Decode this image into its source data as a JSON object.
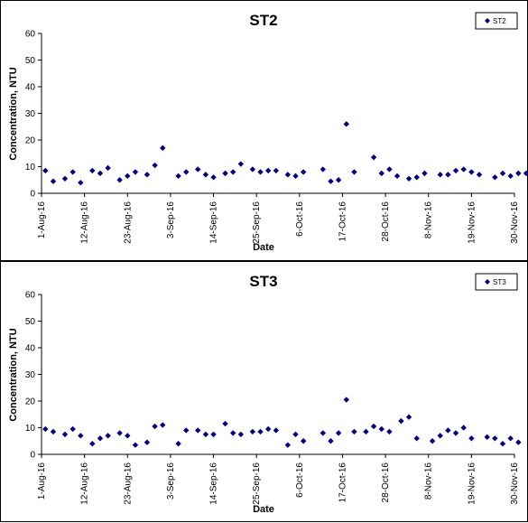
{
  "chart_data": [
    {
      "type": "scatter",
      "title": "ST2",
      "xlabel": "Date",
      "ylabel": "Concentration, NTU",
      "ylim": [
        0,
        60
      ],
      "yticks": [
        0,
        10,
        20,
        30,
        40,
        50,
        60
      ],
      "xlim": [
        "2016-08-01",
        "2016-11-30"
      ],
      "xtick_labels": [
        "1-Aug-16",
        "12-Aug-16",
        "23-Aug-16",
        "3-Sep-16",
        "14-Sep-16",
        "25-Sep-16",
        "6-Oct-16",
        "17-Oct-16",
        "28-Oct-16",
        "8-Nov-16",
        "19-Nov-16",
        "30-Nov-16"
      ],
      "grid": false,
      "legend": "top-right",
      "marker_color": "#000080",
      "series": [
        {
          "name": "ST2",
          "points": [
            [
              "2016-08-02",
              8.5
            ],
            [
              "2016-08-04",
              4.5
            ],
            [
              "2016-08-07",
              5.5
            ],
            [
              "2016-08-09",
              8
            ],
            [
              "2016-08-11",
              4
            ],
            [
              "2016-08-14",
              8.5
            ],
            [
              "2016-08-16",
              7.5
            ],
            [
              "2016-08-18",
              9.5
            ],
            [
              "2016-08-21",
              5
            ],
            [
              "2016-08-23",
              6.5
            ],
            [
              "2016-08-25",
              8
            ],
            [
              "2016-08-28",
              7
            ],
            [
              "2016-08-30",
              10.5
            ],
            [
              "2016-09-01",
              17
            ],
            [
              "2016-09-05",
              6.5
            ],
            [
              "2016-09-07",
              8
            ],
            [
              "2016-09-10",
              9
            ],
            [
              "2016-09-12",
              7
            ],
            [
              "2016-09-14",
              6
            ],
            [
              "2016-09-17",
              7.5
            ],
            [
              "2016-09-19",
              8
            ],
            [
              "2016-09-21",
              11
            ],
            [
              "2016-09-24",
              9
            ],
            [
              "2016-09-26",
              8
            ],
            [
              "2016-09-28",
              8.5
            ],
            [
              "2016-09-30",
              8.5
            ],
            [
              "2016-10-03",
              7
            ],
            [
              "2016-10-05",
              6.5
            ],
            [
              "2016-10-07",
              8
            ],
            [
              "2016-10-12",
              9
            ],
            [
              "2016-10-14",
              4.5
            ],
            [
              "2016-10-16",
              5
            ],
            [
              "2016-10-18",
              26
            ],
            [
              "2016-10-20",
              8
            ],
            [
              "2016-10-25",
              13.5
            ],
            [
              "2016-10-27",
              7.5
            ],
            [
              "2016-10-29",
              9
            ],
            [
              "2016-10-31",
              6.5
            ],
            [
              "2016-11-03",
              5.5
            ],
            [
              "2016-11-05",
              6
            ],
            [
              "2016-11-07",
              7.5
            ],
            [
              "2016-11-11",
              7
            ],
            [
              "2016-11-13",
              7
            ],
            [
              "2016-11-15",
              8.5
            ],
            [
              "2016-11-17",
              9
            ],
            [
              "2016-11-19",
              8
            ],
            [
              "2016-11-21",
              7
            ],
            [
              "2016-11-25",
              6
            ],
            [
              "2016-11-27",
              7.5
            ],
            [
              "2016-11-29",
              6.5
            ],
            [
              "2016-12-01",
              7.5
            ],
            [
              "2016-12-03",
              7.5
            ]
          ]
        }
      ]
    },
    {
      "type": "scatter",
      "title": "ST3",
      "xlabel": "Date",
      "ylabel": "Concentration, NTU",
      "ylim": [
        0,
        60
      ],
      "yticks": [
        0,
        10,
        20,
        30,
        40,
        50,
        60
      ],
      "xlim": [
        "2016-08-01",
        "2016-11-30"
      ],
      "xtick_labels": [
        "1-Aug-16",
        "12-Aug-16",
        "23-Aug-16",
        "3-Sep-16",
        "14-Sep-16",
        "25-Sep-16",
        "6-Oct-16",
        "17-Oct-16",
        "28-Oct-16",
        "8-Nov-16",
        "19-Nov-16",
        "30-Nov-16"
      ],
      "grid": false,
      "legend": "top-right",
      "marker_color": "#000080",
      "series": [
        {
          "name": "ST3",
          "points": [
            [
              "2016-08-02",
              9.5
            ],
            [
              "2016-08-04",
              8.5
            ],
            [
              "2016-08-07",
              7.5
            ],
            [
              "2016-08-09",
              9.5
            ],
            [
              "2016-08-11",
              7
            ],
            [
              "2016-08-14",
              4
            ],
            [
              "2016-08-16",
              6
            ],
            [
              "2016-08-18",
              7
            ],
            [
              "2016-08-21",
              8
            ],
            [
              "2016-08-23",
              7
            ],
            [
              "2016-08-25",
              3.5
            ],
            [
              "2016-08-28",
              4.5
            ],
            [
              "2016-08-30",
              10.5
            ],
            [
              "2016-09-01",
              11
            ],
            [
              "2016-09-05",
              4
            ],
            [
              "2016-09-07",
              9
            ],
            [
              "2016-09-10",
              9
            ],
            [
              "2016-09-12",
              7.5
            ],
            [
              "2016-09-14",
              7.5
            ],
            [
              "2016-09-17",
              11.5
            ],
            [
              "2016-09-19",
              8
            ],
            [
              "2016-09-21",
              7.5
            ],
            [
              "2016-09-24",
              8.5
            ],
            [
              "2016-09-26",
              8.5
            ],
            [
              "2016-09-28",
              9.5
            ],
            [
              "2016-09-30",
              9
            ],
            [
              "2016-10-03",
              3.5
            ],
            [
              "2016-10-05",
              7.5
            ],
            [
              "2016-10-07",
              5
            ],
            [
              "2016-10-12",
              8
            ],
            [
              "2016-10-14",
              5
            ],
            [
              "2016-10-16",
              8
            ],
            [
              "2016-10-18",
              20.5
            ],
            [
              "2016-10-20",
              8.5
            ],
            [
              "2016-10-23",
              8.5
            ],
            [
              "2016-10-25",
              10.5
            ],
            [
              "2016-10-27",
              9.5
            ],
            [
              "2016-10-29",
              8.5
            ],
            [
              "2016-11-01",
              12.5
            ],
            [
              "2016-11-03",
              14
            ],
            [
              "2016-11-05",
              6
            ],
            [
              "2016-11-09",
              5
            ],
            [
              "2016-11-11",
              7
            ],
            [
              "2016-11-13",
              9
            ],
            [
              "2016-11-15",
              8
            ],
            [
              "2016-11-17",
              10
            ],
            [
              "2016-11-19",
              6
            ],
            [
              "2016-11-23",
              6.5
            ],
            [
              "2016-11-25",
              6
            ],
            [
              "2016-11-27",
              4
            ],
            [
              "2016-11-29",
              6
            ],
            [
              "2016-12-01",
              4.5
            ]
          ]
        }
      ]
    }
  ]
}
